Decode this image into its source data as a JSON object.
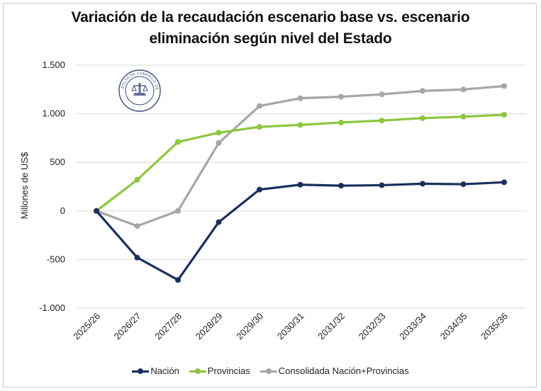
{
  "chart_data": {
    "type": "line",
    "title_line1": "Variación de la recaudación escenario base vs. escenario",
    "title_line2": "eliminación según nivel del Estado",
    "ylabel": "Millones de US$",
    "xlabel": "",
    "ylim": [
      -1000,
      1500
    ],
    "yticks": [
      -1000,
      -500,
      0,
      500,
      1000,
      1500
    ],
    "ytick_labels": [
      "-1.000",
      "-500",
      "0",
      "500",
      "1.000",
      "1.500"
    ],
    "categories": [
      "2025/26",
      "2026/27",
      "2027/28",
      "2028/29",
      "2029/30",
      "2030/31",
      "2031/32",
      "2032/33",
      "2033/34",
      "2034/35",
      "2035/36"
    ],
    "grid": true,
    "legend_position": "bottom",
    "series": [
      {
        "name": "Nación",
        "color": "#1b2f5e",
        "values": [
          0,
          -480,
          -710,
          -115,
          220,
          270,
          260,
          265,
          280,
          275,
          295
        ]
      },
      {
        "name": "Provincias",
        "color": "#8dc63f",
        "values": [
          0,
          320,
          710,
          805,
          865,
          885,
          910,
          930,
          955,
          970,
          990
        ]
      },
      {
        "name": "Consolidada Nación+Provincias",
        "color": "#a6a6a6",
        "values": [
          0,
          -155,
          0,
          700,
          1080,
          1160,
          1175,
          1200,
          1235,
          1250,
          1285
        ]
      }
    ]
  },
  "watermark": {
    "text": "BOLSA DE COMERCIO DE ROSARIO",
    "color": "#3b4c7a"
  }
}
